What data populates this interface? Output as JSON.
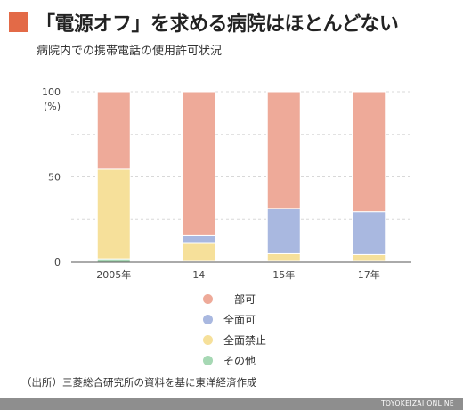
{
  "title": "「電源オフ」を求める病院はほとんどない",
  "subtitle": "病院内での携帯電話の使用許可状況",
  "source": "（出所）三菱総合研究所の資料を基に東洋経済作成",
  "brand": "TOYOKEIZAI ONLINE",
  "colors": {
    "accent": "#e36a47",
    "partial": "#eeaa99",
    "full_allowed": "#a9b8e0",
    "full_ban": "#f6e09a",
    "other": "#a6d8b4",
    "footer": "#8e8e8e"
  },
  "chart_data": {
    "type": "bar",
    "stacked": true,
    "categories": [
      "2005年",
      "14",
      "15年",
      "17年"
    ],
    "series": [
      {
        "name": "その他",
        "color": "#a6d8b4",
        "values": [
          1.5,
          0.5,
          0.5,
          0.5
        ]
      },
      {
        "name": "全面禁止",
        "color": "#f6e09a",
        "values": [
          53,
          10.5,
          4.5,
          4
        ]
      },
      {
        "name": "全面可",
        "color": "#a9b8e0",
        "values": [
          0,
          4.5,
          26.5,
          25
        ]
      },
      {
        "name": "一部可",
        "color": "#eeaa99",
        "values": [
          45.5,
          84.5,
          68.5,
          70.5
        ]
      }
    ],
    "yticks": [
      0,
      50,
      100
    ],
    "ylim": [
      0,
      100
    ],
    "yunit": "(%)",
    "grid": true,
    "legend": {
      "position": "bottom-center",
      "items": [
        {
          "label": "一部可",
          "color": "#eeaa99"
        },
        {
          "label": "全面可",
          "color": "#a9b8e0"
        },
        {
          "label": "全面禁止",
          "color": "#f6e09a"
        },
        {
          "label": "その他",
          "color": "#a6d8b4"
        }
      ]
    }
  }
}
